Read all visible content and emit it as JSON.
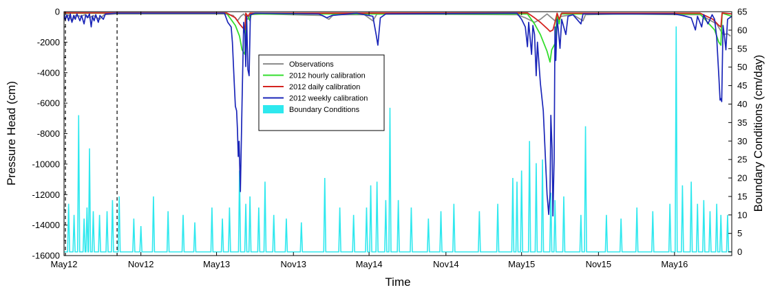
{
  "chart_data": {
    "type": "line",
    "title": "",
    "xlabel": "Time",
    "ylabel": "Pressure Head (cm)",
    "y2label": "Boundary Conditions (cm/day)",
    "x_tick_labels": [
      "May12",
      "Nov12",
      "May13",
      "Nov13",
      "May14",
      "Nov14",
      "May15",
      "Nov15",
      "May16"
    ],
    "x_ticks": [
      "2012-05-01",
      "2012-11-01",
      "2013-05-01",
      "2013-11-01",
      "2014-05-01",
      "2014-11-01",
      "2015-05-01",
      "2015-11-01",
      "2016-05-01"
    ],
    "xlim": [
      "2012-05-01",
      "2016-09-15"
    ],
    "ylim": [
      -16000,
      0
    ],
    "y_ticks": [
      0,
      -2000,
      -4000,
      -6000,
      -8000,
      -10000,
      -12000,
      -14000,
      -16000
    ],
    "y2lim": [
      -1,
      65
    ],
    "y2_ticks": [
      0,
      5,
      10,
      15,
      20,
      25,
      30,
      35,
      40,
      45,
      50,
      55,
      60,
      65
    ],
    "grid": false,
    "legend_position": "center",
    "reference_lines": [
      "2012-05-01",
      "2012-09-05"
    ],
    "series": [
      {
        "name": "Observations",
        "color": "#8c8c8c",
        "axis": "left",
        "points": [
          [
            "2012-05-01",
            -150
          ],
          [
            "2012-05-05",
            -400
          ],
          [
            "2012-05-12",
            -200
          ],
          [
            "2012-05-20",
            -650
          ],
          [
            "2012-05-28",
            -250
          ],
          [
            "2012-06-10",
            -300
          ],
          [
            "2012-06-20",
            -200
          ],
          [
            "2012-07-01",
            -400
          ],
          [
            "2012-07-10",
            -250
          ],
          [
            "2012-07-25",
            -500
          ],
          [
            "2012-08-05",
            -200
          ],
          [
            "2012-09-01",
            -150
          ],
          [
            "2013-05-20",
            -150
          ],
          [
            "2013-06-10",
            -250
          ],
          [
            "2013-06-20",
            -600
          ],
          [
            "2013-06-28",
            -300
          ],
          [
            "2013-07-05",
            -150
          ],
          [
            "2013-07-15",
            -500
          ],
          [
            "2013-07-20",
            -200
          ],
          [
            "2013-08-15",
            -150
          ],
          [
            "2014-01-10",
            -250
          ],
          [
            "2014-01-25",
            -500
          ],
          [
            "2014-02-05",
            -200
          ],
          [
            "2014-04-20",
            -200
          ],
          [
            "2014-05-10",
            -600
          ],
          [
            "2014-05-20",
            -150
          ],
          [
            "2015-04-20",
            -200
          ],
          [
            "2015-05-10",
            -400
          ],
          [
            "2015-06-01",
            -700
          ],
          [
            "2015-06-15",
            -500
          ],
          [
            "2015-07-01",
            -150
          ],
          [
            "2015-07-20",
            -600
          ],
          [
            "2015-08-05",
            -300
          ],
          [
            "2015-09-01",
            -200
          ],
          [
            "2015-09-25",
            -600
          ],
          [
            "2015-10-01",
            -200
          ],
          [
            "2016-01-01",
            -150
          ],
          [
            "2016-05-15",
            -200
          ],
          [
            "2016-07-01",
            -200
          ],
          [
            "2016-08-10",
            -800
          ],
          [
            "2016-08-25",
            -1500
          ],
          [
            "2016-09-05",
            -1450
          ],
          [
            "2016-09-12",
            -1600
          ]
        ]
      },
      {
        "name": "2012 hourly calibration",
        "color": "#33dd2d",
        "axis": "left",
        "points": [
          [
            "2012-05-01",
            -100
          ],
          [
            "2013-05-25",
            -100
          ],
          [
            "2013-06-15",
            -900
          ],
          [
            "2013-06-25",
            -1600
          ],
          [
            "2013-07-01",
            -2500
          ],
          [
            "2013-07-08",
            -2800
          ],
          [
            "2013-07-10",
            -150
          ],
          [
            "2013-07-15",
            -300
          ],
          [
            "2013-07-20",
            -600
          ],
          [
            "2013-07-23",
            -150
          ],
          [
            "2015-05-15",
            -150
          ],
          [
            "2015-06-01",
            -800
          ],
          [
            "2015-06-15",
            -1500
          ],
          [
            "2015-07-01",
            -2600
          ],
          [
            "2015-07-08",
            -3300
          ],
          [
            "2015-07-12",
            -2500
          ],
          [
            "2015-07-20",
            -2100
          ],
          [
            "2015-07-25",
            -150
          ],
          [
            "2015-07-30",
            -800
          ],
          [
            "2015-08-03",
            -150
          ],
          [
            "2016-07-01",
            -150
          ],
          [
            "2016-08-05",
            -1200
          ],
          [
            "2016-08-15",
            -2000
          ],
          [
            "2016-08-20",
            -2200
          ],
          [
            "2016-08-23",
            -100
          ],
          [
            "2016-09-15",
            -300
          ]
        ]
      },
      {
        "name": "2012 daily calibration",
        "color": "#d4231f",
        "axis": "left",
        "points": [
          [
            "2012-05-01",
            -80
          ],
          [
            "2013-05-25",
            -80
          ],
          [
            "2013-06-15",
            -400
          ],
          [
            "2013-06-25",
            -800
          ],
          [
            "2013-07-01",
            -1000
          ],
          [
            "2013-07-08",
            -1200
          ],
          [
            "2013-07-10",
            -100
          ],
          [
            "2013-07-15",
            -300
          ],
          [
            "2013-07-20",
            -100
          ],
          [
            "2015-05-15",
            -80
          ],
          [
            "2015-06-01",
            -400
          ],
          [
            "2015-06-15",
            -700
          ],
          [
            "2015-07-01",
            -1100
          ],
          [
            "2015-07-08",
            -1300
          ],
          [
            "2015-07-15",
            -1200
          ],
          [
            "2015-07-20",
            -700
          ],
          [
            "2015-07-25",
            -100
          ],
          [
            "2015-07-30",
            -500
          ],
          [
            "2015-08-05",
            -100
          ],
          [
            "2016-07-01",
            -100
          ],
          [
            "2016-08-01",
            -500
          ],
          [
            "2016-08-15",
            -900
          ],
          [
            "2016-08-20",
            -1000
          ],
          [
            "2016-08-23",
            -80
          ],
          [
            "2016-09-15",
            -150
          ]
        ]
      },
      {
        "name": "2012 weekly calibration",
        "color": "#1a25b8",
        "axis": "left",
        "points": [
          [
            "2012-05-01",
            -200
          ],
          [
            "2012-05-04",
            -550
          ],
          [
            "2012-05-08",
            -200
          ],
          [
            "2012-05-12",
            -600
          ],
          [
            "2012-05-16",
            -150
          ],
          [
            "2012-05-20",
            -700
          ],
          [
            "2012-05-24",
            -250
          ],
          [
            "2012-05-28",
            -500
          ],
          [
            "2012-06-01",
            -150
          ],
          [
            "2012-06-08",
            -600
          ],
          [
            "2012-06-12",
            -250
          ],
          [
            "2012-06-18",
            -800
          ],
          [
            "2012-06-22",
            -200
          ],
          [
            "2012-06-26",
            -400
          ],
          [
            "2012-07-01",
            -150
          ],
          [
            "2012-07-05",
            -1000
          ],
          [
            "2012-07-08",
            -300
          ],
          [
            "2012-07-12",
            -600
          ],
          [
            "2012-07-16",
            -200
          ],
          [
            "2012-07-22",
            -700
          ],
          [
            "2012-07-26",
            -250
          ],
          [
            "2012-08-03",
            -500
          ],
          [
            "2012-08-08",
            -150
          ],
          [
            "2012-09-01",
            -100
          ],
          [
            "2012-10-10",
            -100
          ],
          [
            "2013-05-20",
            -100
          ],
          [
            "2013-05-28",
            -700
          ],
          [
            "2013-06-05",
            -1000
          ],
          [
            "2013-06-08",
            -2000
          ],
          [
            "2013-06-12",
            -4500
          ],
          [
            "2013-06-15",
            -6200
          ],
          [
            "2013-06-18",
            -6500
          ],
          [
            "2013-06-20",
            -7700
          ],
          [
            "2013-06-22",
            -9500
          ],
          [
            "2013-06-24",
            -8500
          ],
          [
            "2013-06-27",
            -11800
          ],
          [
            "2013-07-01",
            -6000
          ],
          [
            "2013-07-05",
            -700
          ],
          [
            "2013-07-08",
            -1500
          ],
          [
            "2013-07-10",
            -3600
          ],
          [
            "2013-07-12",
            -300
          ],
          [
            "2013-07-15",
            -3800
          ],
          [
            "2013-07-18",
            -4200
          ],
          [
            "2013-07-21",
            -200
          ],
          [
            "2013-08-01",
            -100
          ],
          [
            "2014-01-01",
            -150
          ],
          [
            "2014-01-20",
            -400
          ],
          [
            "2014-02-01",
            -250
          ],
          [
            "2014-04-01",
            -100
          ],
          [
            "2014-05-10",
            -300
          ],
          [
            "2014-05-18",
            -1500
          ],
          [
            "2014-05-22",
            -2200
          ],
          [
            "2014-05-28",
            -400
          ],
          [
            "2014-06-10",
            -150
          ],
          [
            "2015-04-20",
            -100
          ],
          [
            "2015-05-01",
            -500
          ],
          [
            "2015-05-10",
            -1000
          ],
          [
            "2015-05-15",
            -2300
          ],
          [
            "2015-05-18",
            -700
          ],
          [
            "2015-05-25",
            -2800
          ],
          [
            "2015-05-28",
            -900
          ],
          [
            "2015-06-01",
            -1500
          ],
          [
            "2015-06-05",
            -4200
          ],
          [
            "2015-06-08",
            -2000
          ],
          [
            "2015-06-15",
            -4700
          ],
          [
            "2015-06-22",
            -6500
          ],
          [
            "2015-07-01",
            -12000
          ],
          [
            "2015-07-05",
            -13300
          ],
          [
            "2015-07-08",
            -12000
          ],
          [
            "2015-07-10",
            -6800
          ],
          [
            "2015-07-13",
            -9000
          ],
          [
            "2015-07-15",
            -13400
          ],
          [
            "2015-07-18",
            -9600
          ],
          [
            "2015-07-20",
            -1000
          ],
          [
            "2015-07-22",
            -3200
          ],
          [
            "2015-07-25",
            -500
          ],
          [
            "2015-07-28",
            -1200
          ],
          [
            "2015-08-01",
            -2400
          ],
          [
            "2015-08-05",
            -500
          ],
          [
            "2015-08-15",
            -1500
          ],
          [
            "2015-08-20",
            -300
          ],
          [
            "2015-09-01",
            -200
          ],
          [
            "2015-09-20",
            -800
          ],
          [
            "2015-09-25",
            -150
          ],
          [
            "2016-05-01",
            -150
          ],
          [
            "2016-05-20",
            -250
          ],
          [
            "2016-06-10",
            -400
          ],
          [
            "2016-06-20",
            -1200
          ],
          [
            "2016-06-25",
            -300
          ],
          [
            "2016-07-05",
            -1000
          ],
          [
            "2016-07-10",
            -200
          ],
          [
            "2016-07-20",
            -800
          ],
          [
            "2016-07-30",
            -200
          ],
          [
            "2016-08-05",
            -500
          ],
          [
            "2016-08-10",
            -1700
          ],
          [
            "2016-08-15",
            -4200
          ],
          [
            "2016-08-18",
            -5800
          ],
          [
            "2016-08-20",
            -5700
          ],
          [
            "2016-08-22",
            -5900
          ],
          [
            "2016-08-25",
            -900
          ],
          [
            "2016-08-28",
            -1500
          ],
          [
            "2016-09-01",
            -2500
          ],
          [
            "2016-09-05",
            -500
          ],
          [
            "2016-09-15",
            -300
          ]
        ]
      },
      {
        "name": "Boundary Conditions",
        "color": "#2ee8ee",
        "axis": "right",
        "baseline": 0,
        "spikes": [
          [
            "2012-05-12",
            13
          ],
          [
            "2012-05-25",
            10
          ],
          [
            "2012-06-05",
            37
          ],
          [
            "2012-06-18",
            9
          ],
          [
            "2012-06-25",
            12
          ],
          [
            "2012-07-01",
            28
          ],
          [
            "2012-07-10",
            11
          ],
          [
            "2012-07-25",
            10
          ],
          [
            "2012-08-12",
            11
          ],
          [
            "2012-08-25",
            14
          ],
          [
            "2012-09-10",
            15
          ],
          [
            "2012-10-15",
            9
          ],
          [
            "2012-11-01",
            7
          ],
          [
            "2012-12-01",
            15
          ],
          [
            "2013-01-05",
            11
          ],
          [
            "2013-02-10",
            10
          ],
          [
            "2013-03-10",
            8
          ],
          [
            "2013-04-20",
            12
          ],
          [
            "2013-05-15",
            9
          ],
          [
            "2013-06-01",
            12
          ],
          [
            "2013-06-25",
            22
          ],
          [
            "2013-07-10",
            13
          ],
          [
            "2013-07-20",
            15
          ],
          [
            "2013-08-10",
            12
          ],
          [
            "2013-08-25",
            19
          ],
          [
            "2013-09-15",
            10
          ],
          [
            "2013-10-15",
            9
          ],
          [
            "2013-11-20",
            8
          ],
          [
            "2014-01-15",
            20
          ],
          [
            "2014-02-20",
            12
          ],
          [
            "2014-03-25",
            10
          ],
          [
            "2014-04-25",
            12
          ],
          [
            "2014-05-05",
            18
          ],
          [
            "2014-05-20",
            19
          ],
          [
            "2014-06-10",
            14
          ],
          [
            "2014-06-20",
            39
          ],
          [
            "2014-07-10",
            14
          ],
          [
            "2014-08-10",
            12
          ],
          [
            "2014-09-20",
            9
          ],
          [
            "2014-10-20",
            11
          ],
          [
            "2014-11-20",
            13
          ],
          [
            "2015-01-20",
            11
          ],
          [
            "2015-03-05",
            13
          ],
          [
            "2015-04-10",
            20
          ],
          [
            "2015-04-20",
            19
          ],
          [
            "2015-05-01",
            22
          ],
          [
            "2015-05-20",
            30
          ],
          [
            "2015-06-05",
            24
          ],
          [
            "2015-06-20",
            25
          ],
          [
            "2015-07-10",
            16
          ],
          [
            "2015-07-20",
            14
          ],
          [
            "2015-08-10",
            15
          ],
          [
            "2015-09-20",
            10
          ],
          [
            "2015-10-01",
            34
          ],
          [
            "2015-11-20",
            10
          ],
          [
            "2015-12-25",
            9
          ],
          [
            "2016-02-01",
            12
          ],
          [
            "2016-03-10",
            11
          ],
          [
            "2016-04-20",
            13
          ],
          [
            "2016-05-05",
            61
          ],
          [
            "2016-05-20",
            18
          ],
          [
            "2016-06-10",
            19
          ],
          [
            "2016-06-25",
            13
          ],
          [
            "2016-07-10",
            14
          ],
          [
            "2016-07-25",
            11
          ],
          [
            "2016-08-10",
            13
          ],
          [
            "2016-08-20",
            10
          ],
          [
            "2016-09-05",
            10
          ]
        ]
      }
    ]
  }
}
